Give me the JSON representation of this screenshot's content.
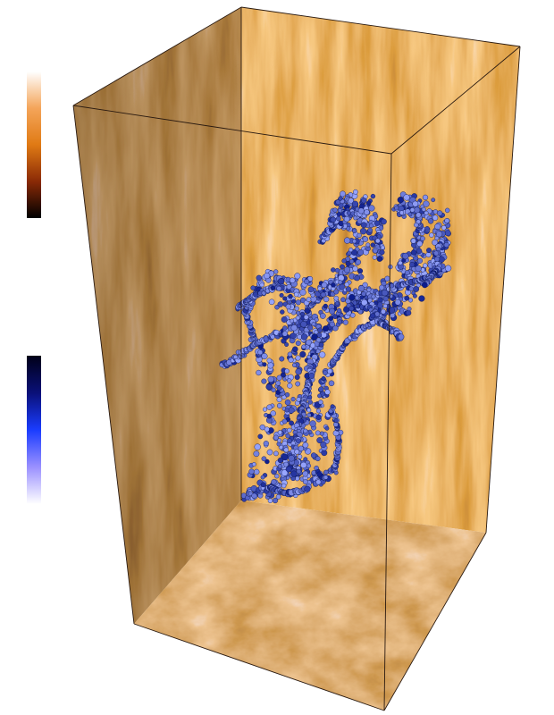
{
  "figure": {
    "colors": {
      "background": "#ffffff",
      "edge": "#2a1a10",
      "particle_dark": "#0a1a8a",
      "particle_light": "#9aa8ff"
    },
    "colorbars": [
      {
        "name": "heat-scale",
        "stops": [
          "#ffffff",
          "#f4a55a",
          "#e07a14",
          "#8a2a06",
          "#000000"
        ]
      },
      {
        "name": "particle-scale",
        "stops": [
          "#000018",
          "#0a1078",
          "#1a3cff",
          "#9a90ff",
          "#ffffff"
        ]
      }
    ],
    "box_faces": [
      "back-wall",
      "left-wall",
      "floor"
    ]
  }
}
